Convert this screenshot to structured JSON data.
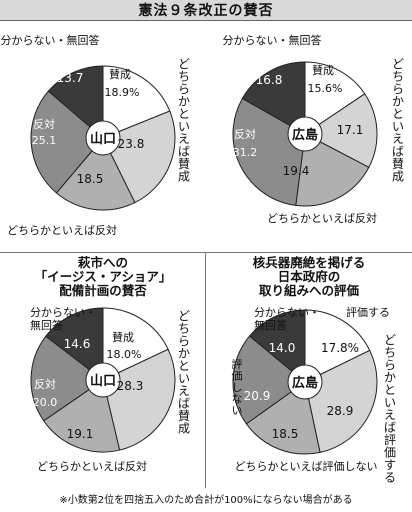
{
  "figure_title": "憲法９条改正の賛否",
  "footnote": "※小数第2位を四捨五入のため合計が100%にならない場合がある",
  "chart_data": [
    {
      "type": "pie",
      "title_lines": [],
      "center_label": "山口",
      "slices": [
        {
          "label": "賛成",
          "value": 18.9,
          "display": "18.9",
          "unit": "%"
        },
        {
          "label": "どちらかといえば賛成",
          "value": 23.8,
          "display": "23.8",
          "unit": ""
        },
        {
          "label": "どちらかといえば反対",
          "value": 18.5,
          "display": "18.5",
          "unit": ""
        },
        {
          "label": "反対",
          "value": 25.1,
          "display": "25.1",
          "unit": ""
        },
        {
          "label": "分からない・無回答",
          "value": 13.7,
          "display": "13.7",
          "unit": ""
        }
      ]
    },
    {
      "type": "pie",
      "title_lines": [],
      "center_label": "広島",
      "slices": [
        {
          "label": "賛成",
          "value": 15.6,
          "display": "15.6",
          "unit": "%"
        },
        {
          "label": "どちらかといえば賛成",
          "value": 17.1,
          "display": "17.1",
          "unit": ""
        },
        {
          "label": "どちらかといえば反対",
          "value": 19.4,
          "display": "19.4",
          "unit": ""
        },
        {
          "label": "反対",
          "value": 31.2,
          "display": "31.2",
          "unit": ""
        },
        {
          "label": "分からない・無回答",
          "value": 16.8,
          "display": "16.8",
          "unit": ""
        }
      ]
    },
    {
      "type": "pie",
      "title_lines": [
        "萩市への",
        "「イージス・アショア」",
        "配備計画の賛否"
      ],
      "center_label": "山口",
      "slices": [
        {
          "label": "賛成",
          "value": 18.0,
          "display": "18.0",
          "unit": "%"
        },
        {
          "label": "どちらかといえば賛成",
          "value": 28.3,
          "display": "28.3",
          "unit": ""
        },
        {
          "label": "どちらかといえば反対",
          "value": 19.1,
          "display": "19.1",
          "unit": ""
        },
        {
          "label": "反対",
          "value": 20.0,
          "display": "20.0",
          "unit": ""
        },
        {
          "label": "分からない・無回答",
          "value": 14.6,
          "display": "14.6",
          "unit": ""
        }
      ]
    },
    {
      "type": "pie",
      "title_lines": [
        "核兵器廃絶を掲げる",
        "日本政府の",
        "取り組みへの評価"
      ],
      "center_label": "広島",
      "slices": [
        {
          "label": "評価する",
          "value": 17.8,
          "display": "17.8",
          "unit": "%"
        },
        {
          "label": "どちらかといえば評価する",
          "value": 28.9,
          "display": "28.9",
          "unit": ""
        },
        {
          "label": "どちらかといえば評価しない",
          "value": 18.5,
          "display": "18.5",
          "unit": ""
        },
        {
          "label": "評価しない",
          "value": 20.9,
          "display": "20.9",
          "unit": ""
        },
        {
          "label": "分からない・無回答",
          "value": 14.0,
          "display": "14.0",
          "unit": ""
        }
      ]
    }
  ],
  "slice_colors": [
    "#ffffff",
    "#d4d4d4",
    "#b0b0b0",
    "#8c8c8c",
    "#3a3a3a"
  ]
}
